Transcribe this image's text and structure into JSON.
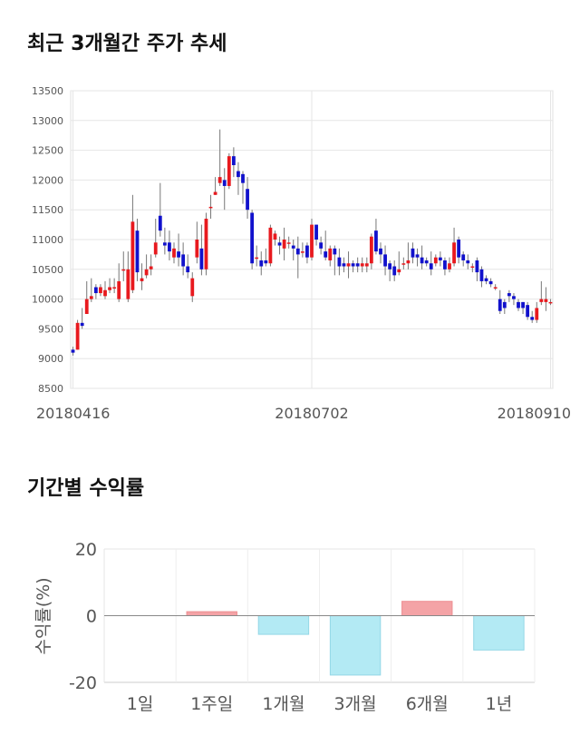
{
  "titles": {
    "price": "최근 3개월간 주가 추세",
    "returns": "기간별 수익률"
  },
  "colors": {
    "up": "#e8191e",
    "down": "#1111cc",
    "grid": "#e6e6e6",
    "positive_bar": "#f4a3a6",
    "negative_bar": "#b3eaf4"
  },
  "chart_data": [
    {
      "type": "candlestick",
      "title": "최근 3개월간 주가 추세",
      "yticks": [
        8500,
        9000,
        9500,
        10000,
        10500,
        11000,
        11500,
        12000,
        12500,
        13000,
        13500
      ],
      "ylim": [
        8500,
        13500
      ],
      "xtick_labels": [
        {
          "label": "20180416",
          "index": 0
        },
        {
          "label": "20180702",
          "index": 52
        },
        {
          "label": "20180910",
          "index": 104
        }
      ],
      "candles": [
        [
          9150,
          9100,
          9050,
          9200
        ],
        [
          9150,
          9600,
          9150,
          9650
        ],
        [
          9600,
          9550,
          9500,
          9850
        ],
        [
          9750,
          10000,
          9750,
          10300
        ],
        [
          10000,
          10050,
          9950,
          10350
        ],
        [
          10200,
          10100,
          10000,
          10250
        ],
        [
          10100,
          10200,
          10050,
          10250
        ],
        [
          10050,
          10150,
          10000,
          10300
        ],
        [
          10150,
          10200,
          10100,
          10350
        ],
        [
          10200,
          10200,
          10100,
          10350
        ],
        [
          10000,
          10300,
          9950,
          10600
        ],
        [
          10500,
          10500,
          10300,
          10800
        ],
        [
          10000,
          10500,
          9950,
          10800
        ],
        [
          10150,
          11300,
          10100,
          11750
        ],
        [
          11150,
          10450,
          10300,
          11350
        ],
        [
          10300,
          10350,
          10150,
          10600
        ],
        [
          10400,
          10500,
          10350,
          10750
        ],
        [
          10500,
          10550,
          10400,
          10750
        ],
        [
          10750,
          10950,
          10700,
          11350
        ],
        [
          11400,
          11150,
          11050,
          11950
        ],
        [
          10950,
          10900,
          10750,
          11200
        ],
        [
          10950,
          10800,
          10650,
          11150
        ],
        [
          10700,
          10850,
          10600,
          10950
        ],
        [
          10800,
          10700,
          10550,
          11100
        ],
        [
          10750,
          10550,
          10400,
          10950
        ],
        [
          10550,
          10450,
          10350,
          10750
        ],
        [
          10050,
          10350,
          9950,
          10450
        ],
        [
          10700,
          11000,
          10600,
          11300
        ],
        [
          10850,
          10500,
          10400,
          11250
        ],
        [
          10500,
          11350,
          10400,
          11450
        ],
        [
          11550,
          11550,
          11350,
          11750
        ],
        [
          11750,
          11800,
          11750,
          12050
        ],
        [
          11950,
          12050,
          11900,
          12850
        ],
        [
          12000,
          11900,
          11500,
          12200
        ],
        [
          11900,
          12400,
          11850,
          12450
        ],
        [
          12400,
          12250,
          12050,
          12550
        ],
        [
          12150,
          12050,
          11750,
          12300
        ],
        [
          12100,
          11950,
          11600,
          12150
        ],
        [
          11850,
          11500,
          11350,
          12050
        ],
        [
          11450,
          10600,
          10500,
          11500
        ],
        [
          10700,
          10700,
          10550,
          10900
        ],
        [
          10650,
          10550,
          10400,
          10800
        ],
        [
          10650,
          10600,
          10550,
          10850
        ],
        [
          10600,
          11200,
          10550,
          11250
        ],
        [
          11000,
          11100,
          10900,
          11150
        ],
        [
          10950,
          10900,
          10750,
          11050
        ],
        [
          10850,
          11000,
          10650,
          11200
        ],
        [
          10950,
          10950,
          10850,
          11050
        ],
        [
          10900,
          10850,
          10650,
          11000
        ],
        [
          10850,
          10750,
          10350,
          11050
        ],
        [
          10800,
          10800,
          10700,
          10950
        ],
        [
          10900,
          10700,
          10600,
          10950
        ],
        [
          10700,
          11250,
          10650,
          11350
        ],
        [
          11250,
          11000,
          10900,
          11250
        ],
        [
          10950,
          10850,
          10750,
          11050
        ],
        [
          10800,
          10700,
          10650,
          11150
        ],
        [
          10650,
          10850,
          10550,
          10900
        ],
        [
          10850,
          10750,
          10400,
          10900
        ],
        [
          10700,
          10550,
          10400,
          10850
        ],
        [
          10600,
          10550,
          10450,
          10700
        ],
        [
          10550,
          10600,
          10350,
          10800
        ],
        [
          10600,
          10550,
          10450,
          10650
        ],
        [
          10600,
          10550,
          10450,
          10700
        ],
        [
          10550,
          10600,
          10450,
          10700
        ],
        [
          10550,
          10600,
          10450,
          10700
        ],
        [
          10600,
          11050,
          10500,
          11100
        ],
        [
          11150,
          10800,
          10750,
          11350
        ],
        [
          10850,
          10750,
          10600,
          10950
        ],
        [
          10750,
          10550,
          10400,
          10900
        ],
        [
          10600,
          10500,
          10300,
          10650
        ],
        [
          10550,
          10400,
          10300,
          10650
        ],
        [
          10450,
          10500,
          10400,
          10800
        ],
        [
          10600,
          10600,
          10500,
          10700
        ],
        [
          10600,
          10650,
          10500,
          10950
        ],
        [
          10850,
          10700,
          10600,
          10950
        ],
        [
          10750,
          10700,
          10550,
          10850
        ],
        [
          10700,
          10600,
          10500,
          10900
        ],
        [
          10650,
          10600,
          10550,
          10700
        ],
        [
          10600,
          10500,
          10400,
          10800
        ],
        [
          10600,
          10700,
          10550,
          10750
        ],
        [
          10700,
          10650,
          10550,
          10800
        ],
        [
          10650,
          10500,
          10400,
          10700
        ],
        [
          10500,
          10600,
          10450,
          10700
        ],
        [
          10600,
          10950,
          10550,
          11200
        ],
        [
          11000,
          10700,
          10600,
          11050
        ],
        [
          10750,
          10650,
          10550,
          10800
        ],
        [
          10650,
          10600,
          10500,
          10750
        ],
        [
          10550,
          10550,
          10450,
          10600
        ],
        [
          10650,
          10450,
          10300,
          10700
        ],
        [
          10500,
          10300,
          10200,
          10550
        ],
        [
          10350,
          10300,
          10250,
          10400
        ],
        [
          10300,
          10250,
          10200,
          10350
        ],
        [
          10200,
          10200,
          10150,
          10250
        ],
        [
          10000,
          9800,
          9750,
          10150
        ],
        [
          9950,
          9850,
          9750,
          10000
        ],
        [
          10100,
          10050,
          9950,
          10150
        ],
        [
          10050,
          10000,
          9900,
          10100
        ],
        [
          9950,
          9850,
          9800,
          10000
        ],
        [
          9950,
          9850,
          9750,
          9950
        ],
        [
          9900,
          9700,
          9650,
          9950
        ],
        [
          9700,
          9650,
          9600,
          9800
        ],
        [
          9650,
          9850,
          9600,
          9950
        ],
        [
          9950,
          10000,
          9900,
          10300
        ],
        [
          9950,
          10000,
          9800,
          10200
        ],
        [
          9950,
          9950,
          9900,
          10000
        ]
      ]
    },
    {
      "type": "bar",
      "title": "기간별 수익률",
      "ylabel": "수익률(%)",
      "categories": [
        "1일",
        "1주일",
        "1개월",
        "3개월",
        "6개월",
        "1년"
      ],
      "values": [
        0,
        1.2,
        -5.6,
        -17.8,
        4.3,
        -10.3
      ],
      "yticks": [
        20,
        0,
        -20
      ],
      "ylim": [
        -20,
        20
      ]
    }
  ]
}
